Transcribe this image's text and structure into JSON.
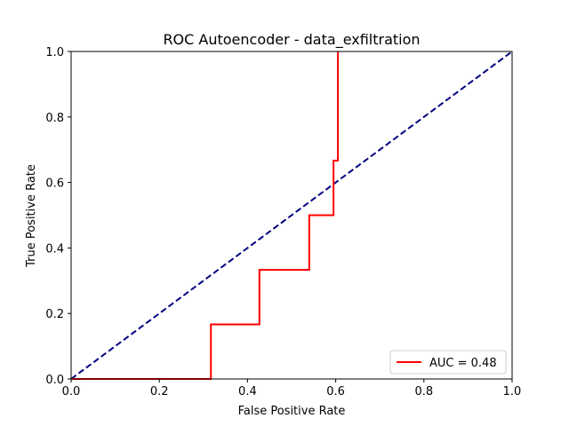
{
  "chart_data": {
    "type": "line",
    "title": "ROC Autoencoder - data_exfiltration",
    "xlabel": "False Positive Rate",
    "ylabel": "True Positive Rate",
    "xlim": [
      0,
      1
    ],
    "ylim": [
      0,
      1
    ],
    "xticks": [
      "0.0",
      "0.2",
      "0.4",
      "0.6",
      "0.8",
      "1.0"
    ],
    "yticks": [
      "0.0",
      "0.2",
      "0.4",
      "0.6",
      "0.8",
      "1.0"
    ],
    "grid": false,
    "legend_position": "lower-right",
    "series": [
      {
        "name": "AUC = 0.48",
        "color": "#ff0000",
        "style": "solid",
        "x": [
          0.0,
          0.317,
          0.317,
          0.427,
          0.427,
          0.54,
          0.54,
          0.595,
          0.595,
          0.605,
          0.605
        ],
        "y": [
          0.0,
          0.0,
          0.1667,
          0.1667,
          0.3333,
          0.3333,
          0.5,
          0.5,
          0.6667,
          0.6667,
          1.0
        ]
      },
      {
        "color": "#000080",
        "style": "dashed",
        "x": [
          0,
          1
        ],
        "y": [
          0,
          1
        ]
      }
    ]
  }
}
